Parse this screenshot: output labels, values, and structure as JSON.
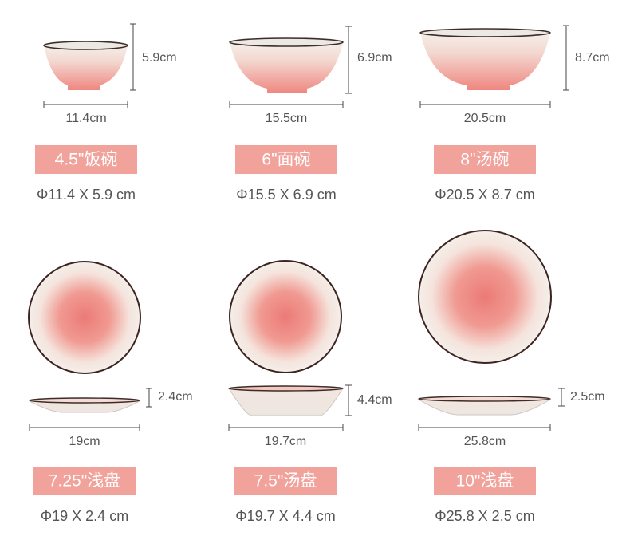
{
  "rows": [
    [
      {
        "width": "11.4cm",
        "height": "5.9cm",
        "badge": "4.5\"饭碗",
        "spec": "Φ11.4 X 5.9 cm"
      },
      {
        "width": "15.5cm",
        "height": "6.9cm",
        "badge": "6\"面碗",
        "spec": "Φ15.5 X 6.9 cm"
      },
      {
        "width": "20.5cm",
        "height": "8.7cm",
        "badge": "8\"汤碗",
        "spec": "Φ20.5 X 8.7 cm"
      }
    ],
    [
      {
        "width": "19cm",
        "height": "2.4cm",
        "badge": "7.25\"浅盘",
        "spec": "Φ19 X 2.4 cm"
      },
      {
        "width": "19.7cm",
        "height": "4.4cm",
        "badge": "7.5\"汤盘",
        "spec": "Φ19.7 X 4.4 cm"
      },
      {
        "width": "25.8cm",
        "height": "2.5cm",
        "badge": "10\"浅盘",
        "spec": "Φ25.8 X 2.5 cm"
      }
    ]
  ]
}
